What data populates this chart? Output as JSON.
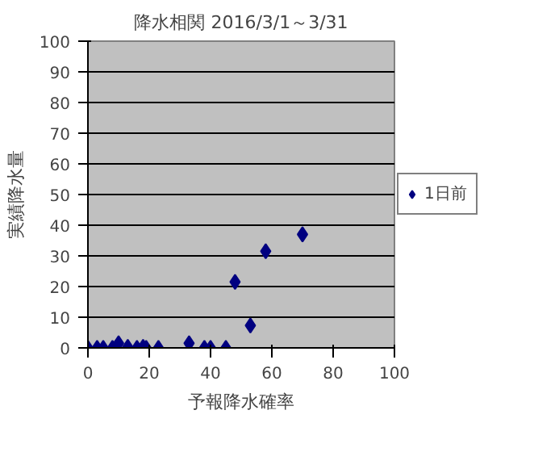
{
  "chart_data": {
    "type": "scatter",
    "title": "降水相関 2016/3/1～3/31",
    "xlabel": "予報降水確率",
    "ylabel": "実績降水量",
    "x": [
      0,
      3,
      5,
      8,
      9,
      10,
      13,
      16,
      18,
      19,
      23,
      33,
      38,
      40,
      45,
      48,
      53,
      58,
      70
    ],
    "series": [
      {
        "name": "1日前",
        "color": "#000080",
        "values": [
          0,
          0,
          0,
          0,
          null,
          1.5,
          0.3,
          0,
          0.3,
          0,
          0,
          1.5,
          0,
          0,
          0,
          21.5,
          7.3,
          31.5,
          37
        ]
      }
    ],
    "xlim": [
      0,
      100
    ],
    "ylim": [
      0,
      100
    ],
    "xticks": [
      0,
      20,
      40,
      60,
      80,
      100
    ],
    "yticks": [
      0,
      10,
      20,
      30,
      40,
      50,
      60,
      70,
      80,
      90,
      100
    ],
    "grid": "y",
    "legend": "right",
    "marker": "diamond"
  }
}
